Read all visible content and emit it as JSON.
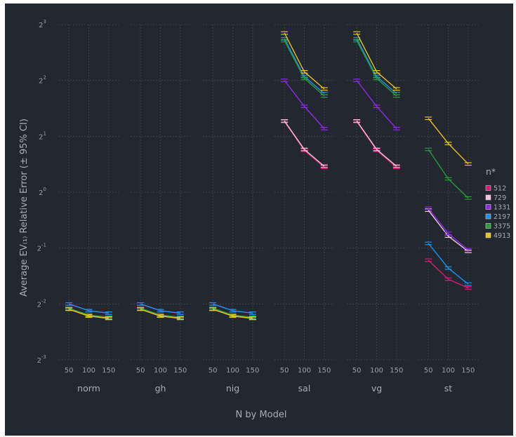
{
  "chart_data": {
    "type": "line",
    "title": "",
    "xlabel": "N by Model",
    "ylabel": "Average EV₍₁₎ Relative Error (± 95% CI)",
    "y_scale": "log2",
    "ylim": [
      0.125,
      8
    ],
    "y_ticks": [
      {
        "value": 0.125,
        "base": "2",
        "exp": "-3"
      },
      {
        "value": 0.25,
        "base": "2",
        "exp": "-2"
      },
      {
        "value": 0.5,
        "base": "2",
        "exp": "-1"
      },
      {
        "value": 1,
        "base": "2",
        "exp": "0"
      },
      {
        "value": 2,
        "base": "2",
        "exp": "1"
      },
      {
        "value": 4,
        "base": "2",
        "exp": "2"
      },
      {
        "value": 8,
        "base": "2",
        "exp": "3"
      }
    ],
    "x": [
      50,
      100,
      150
    ],
    "x_tick_labels": [
      "50",
      "100",
      "150"
    ],
    "xlim": [
      25,
      175
    ],
    "grid": true,
    "legend": {
      "title": "n*",
      "position": "right"
    },
    "series_info": [
      {
        "name": "512",
        "color": "#d81b7a"
      },
      {
        "name": "729",
        "color": "#f4c6dc"
      },
      {
        "name": "1331",
        "color": "#8a2be2"
      },
      {
        "name": "2197",
        "color": "#1e90e6"
      },
      {
        "name": "3375",
        "color": "#2a9a3a"
      },
      {
        "name": "4913",
        "color": "#e8c020"
      }
    ],
    "panels": [
      {
        "name": "norm",
        "series": [
          {
            "name": "512",
            "values": [
              0.235,
              0.216,
              0.21
            ]
          },
          {
            "name": "729",
            "values": [
              0.235,
              0.216,
              0.21
            ]
          },
          {
            "name": "1331",
            "values": [
              0.25,
              0.23,
              0.223
            ]
          },
          {
            "name": "2197",
            "values": [
              0.25,
              0.23,
              0.223
            ]
          },
          {
            "name": "3375",
            "values": [
              0.237,
              0.218,
              0.212
            ]
          },
          {
            "name": "4913",
            "values": [
              0.234,
              0.215,
              0.209
            ]
          }
        ]
      },
      {
        "name": "gh",
        "series": [
          {
            "name": "512",
            "values": [
              0.235,
              0.216,
              0.21
            ]
          },
          {
            "name": "729",
            "values": [
              0.235,
              0.216,
              0.21
            ]
          },
          {
            "name": "1331",
            "values": [
              0.25,
              0.23,
              0.223
            ]
          },
          {
            "name": "2197",
            "values": [
              0.25,
              0.23,
              0.223
            ]
          },
          {
            "name": "3375",
            "values": [
              0.237,
              0.218,
              0.212
            ]
          },
          {
            "name": "4913",
            "values": [
              0.234,
              0.215,
              0.209
            ]
          }
        ]
      },
      {
        "name": "nig",
        "series": [
          {
            "name": "512",
            "values": [
              0.235,
              0.216,
              0.21
            ]
          },
          {
            "name": "729",
            "values": [
              0.235,
              0.216,
              0.21
            ]
          },
          {
            "name": "1331",
            "values": [
              0.25,
              0.23,
              0.223
            ]
          },
          {
            "name": "2197",
            "values": [
              0.25,
              0.23,
              0.223
            ]
          },
          {
            "name": "3375",
            "values": [
              0.237,
              0.218,
              0.212
            ]
          },
          {
            "name": "4913",
            "values": [
              0.234,
              0.215,
              0.209
            ]
          }
        ]
      },
      {
        "name": "sal",
        "series": [
          {
            "name": "512",
            "values": [
              2.4,
              1.68,
              1.36
            ]
          },
          {
            "name": "729",
            "values": [
              2.42,
              1.7,
              1.38
            ]
          },
          {
            "name": "1331",
            "values": [
              4.0,
              2.9,
              2.2
            ]
          },
          {
            "name": "2197",
            "values": [
              6.7,
              4.2,
              3.4
            ]
          },
          {
            "name": "3375",
            "values": [
              6.55,
              4.1,
              3.3
            ]
          },
          {
            "name": "4913",
            "values": [
              7.2,
              4.45,
              3.6
            ]
          }
        ]
      },
      {
        "name": "vg",
        "series": [
          {
            "name": "512",
            "values": [
              2.4,
              1.68,
              1.36
            ]
          },
          {
            "name": "729",
            "values": [
              2.42,
              1.7,
              1.38
            ]
          },
          {
            "name": "1331",
            "values": [
              4.0,
              2.9,
              2.2
            ]
          },
          {
            "name": "2197",
            "values": [
              6.7,
              4.2,
              3.4
            ]
          },
          {
            "name": "3375",
            "values": [
              6.55,
              4.1,
              3.3
            ]
          },
          {
            "name": "4913",
            "values": [
              7.2,
              4.45,
              3.6
            ]
          }
        ]
      },
      {
        "name": "st",
        "series": [
          {
            "name": "512",
            "values": [
              0.43,
              0.34,
              0.305
            ]
          },
          {
            "name": "729",
            "values": [
              0.8,
              0.58,
              0.48
            ]
          },
          {
            "name": "1331",
            "values": [
              0.82,
              0.6,
              0.49
            ]
          },
          {
            "name": "2197",
            "values": [
              0.53,
              0.39,
              0.32
            ]
          },
          {
            "name": "3375",
            "values": [
              1.7,
              1.18,
              0.93
            ]
          },
          {
            "name": "4913",
            "values": [
              2.5,
              1.83,
              1.42
            ]
          }
        ]
      }
    ]
  }
}
